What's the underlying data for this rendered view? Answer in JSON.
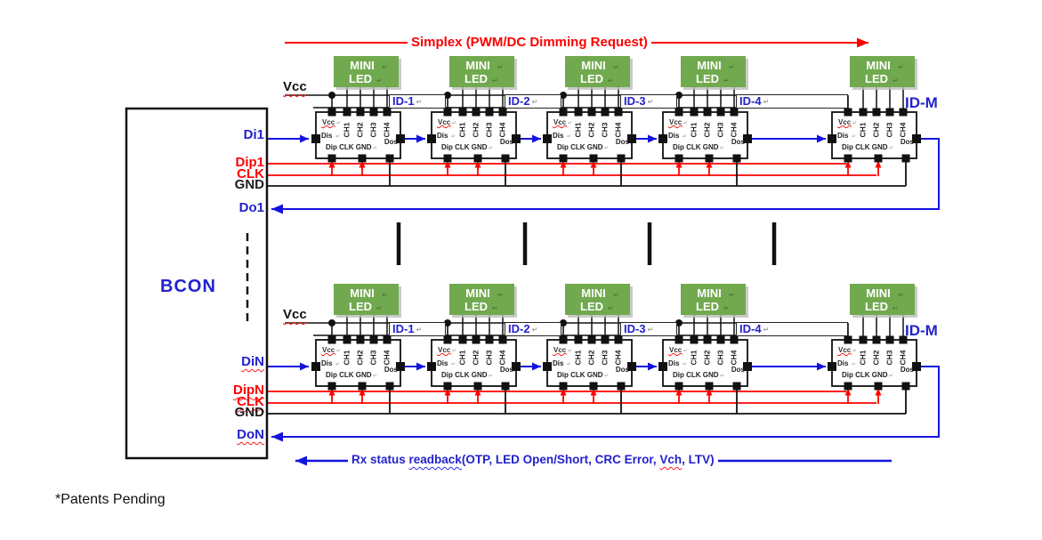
{
  "figure": {
    "note": "*Patents Pending",
    "top_arrow_label": "Simplex (PWM/DC Dimming Request)",
    "readback_segments": [
      {
        "text": "Rx status ",
        "wavy": ""
      },
      {
        "text": "readback",
        "wavy": "blue"
      },
      {
        "text": "(OTP, LED Open/Short, CRC Error, ",
        "wavy": ""
      },
      {
        "text": "Vch",
        "wavy": "red"
      },
      {
        "text": ", LTV)",
        "wavy": ""
      }
    ],
    "bcon_label": "BCON",
    "vcc_label": "Vcc",
    "return_mark": "↵",
    "led_box": {
      "line1": "MINI",
      "line2": "LED"
    },
    "chip": {
      "vcc": "Vcc",
      "channels": [
        "CH1",
        "CH2",
        "CH3",
        "CH4"
      ],
      "data_in": "Dis",
      "data_out": "Dos",
      "bottom_pins": "Dip CLK GND"
    },
    "rows": [
      {
        "name": "row-1",
        "ids": [
          "ID-1",
          "ID-2",
          "ID-3",
          "ID-4",
          "ID-M"
        ],
        "ports": [
          {
            "label": "Di1",
            "color": "blue",
            "wavy": false
          },
          {
            "label": "Dip1",
            "color": "red",
            "wavy": false
          },
          {
            "label": "CLK",
            "color": "red",
            "wavy": false
          },
          {
            "label": "GND",
            "color": "black",
            "wavy": false
          },
          {
            "label": "Do1",
            "color": "blue",
            "wavy": false
          }
        ]
      },
      {
        "name": "row-N",
        "ids": [
          "ID-1",
          "ID-2",
          "ID-3",
          "ID-4",
          "ID-M"
        ],
        "ports": [
          {
            "label": "DiN",
            "color": "blue",
            "wavy": true
          },
          {
            "label": "DipN",
            "color": "red",
            "wavy": true
          },
          {
            "label": "CLK",
            "color": "red",
            "wavy": true
          },
          {
            "label": "GND",
            "color": "black",
            "wavy": false
          },
          {
            "label": "DoN",
            "color": "blue",
            "wavy": true
          }
        ]
      }
    ],
    "colors": {
      "wire_blue": "#1414e0",
      "text_blue": "#2222cc",
      "red": "#fe0000",
      "green": "#71a94e",
      "green_mark": "#4e6e31",
      "black": "#1c1c1c"
    }
  }
}
